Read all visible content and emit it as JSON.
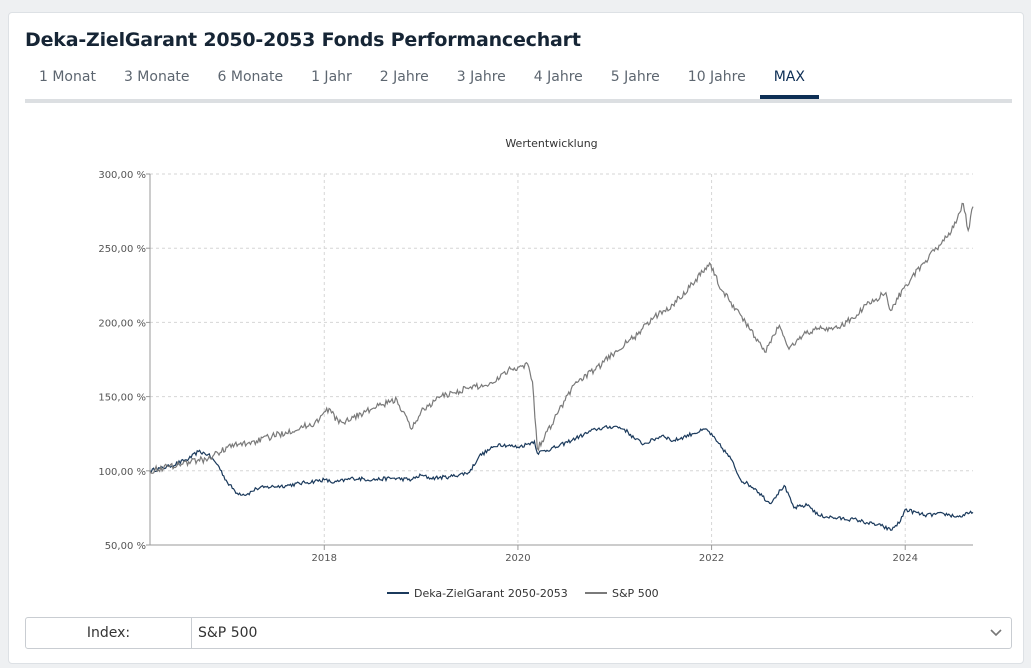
{
  "page": {
    "title": "Deka-ZielGarant 2050-2053 Fonds Performancechart"
  },
  "tabs": [
    {
      "label": "1 Monat"
    },
    {
      "label": "3 Monate"
    },
    {
      "label": "6 Monate"
    },
    {
      "label": "1 Jahr"
    },
    {
      "label": "2 Jahre"
    },
    {
      "label": "3 Jahre"
    },
    {
      "label": "4 Jahre"
    },
    {
      "label": "5 Jahre"
    },
    {
      "label": "10 Jahre"
    },
    {
      "label": "MAX",
      "active": true
    }
  ],
  "index_select": {
    "label": "Index:",
    "value": "S&P 500",
    "icon": "chevron-down-icon"
  },
  "colors": {
    "fund": "#1b3a5c",
    "index": "#7a7a7a",
    "active_tab": "#0e2f55"
  },
  "chart_data": {
    "type": "line",
    "title": "Wertentwicklung",
    "y_tick_labels": [
      "50,00 %",
      "100,00 %",
      "150,00 %",
      "200,00 %",
      "250,00 %",
      "300,00 %"
    ],
    "y_ticks": [
      50,
      100,
      150,
      200,
      250,
      300
    ],
    "ylim": [
      50,
      300
    ],
    "x_tick_labels": [
      "2018",
      "2020",
      "2022",
      "2024"
    ],
    "x_ticks": [
      2018,
      2020,
      2022,
      2024
    ],
    "xlim": [
      2016.2,
      2024.7
    ],
    "grid": true,
    "legend_position": "bottom-center",
    "series": [
      {
        "name": "Deka-ZielGarant 2050-2053",
        "x": [
          2016.2,
          2016.4,
          2016.6,
          2016.7,
          2016.8,
          2016.9,
          2017.0,
          2017.1,
          2017.2,
          2017.3,
          2017.4,
          2017.6,
          2017.8,
          2018.0,
          2018.1,
          2018.3,
          2018.5,
          2018.7,
          2018.9,
          2019.0,
          2019.1,
          2019.3,
          2019.5,
          2019.6,
          2019.8,
          2020.0,
          2020.1,
          2020.17,
          2020.2,
          2020.4,
          2020.6,
          2020.8,
          2021.0,
          2021.1,
          2021.2,
          2021.3,
          2021.5,
          2021.6,
          2021.8,
          2021.95,
          2022.05,
          2022.2,
          2022.3,
          2022.45,
          2022.6,
          2022.75,
          2022.85,
          2023.0,
          2023.1,
          2023.3,
          2023.5,
          2023.6,
          2023.75,
          2023.85,
          2023.95,
          2024.0,
          2024.2,
          2024.4,
          2024.55,
          2024.7
        ],
        "values": [
          100,
          103,
          108,
          113,
          111,
          104,
          92,
          85,
          84,
          88,
          89,
          90,
          92,
          94,
          92,
          95,
          94,
          95,
          94,
          97,
          95,
          96,
          99,
          110,
          118,
          116,
          118,
          120,
          112,
          116,
          122,
          128,
          130,
          128,
          122,
          118,
          124,
          120,
          125,
          128,
          120,
          108,
          94,
          88,
          78,
          90,
          75,
          77,
          70,
          68,
          67,
          65,
          63,
          60,
          66,
          74,
          70,
          71,
          69,
          72
        ]
      },
      {
        "name": "S&P 500",
        "x": [
          2016.2,
          2016.4,
          2016.6,
          2016.8,
          2016.9,
          2017.0,
          2017.3,
          2017.6,
          2017.9,
          2018.05,
          2018.15,
          2018.3,
          2018.5,
          2018.75,
          2018.9,
          2019.0,
          2019.2,
          2019.5,
          2019.7,
          2019.9,
          2020.1,
          2020.15,
          2020.2,
          2020.25,
          2020.4,
          2020.6,
          2020.8,
          2021.0,
          2021.2,
          2021.4,
          2021.6,
          2021.8,
          2021.98,
          2022.1,
          2022.3,
          2022.45,
          2022.55,
          2022.7,
          2022.8,
          2022.95,
          2023.1,
          2023.3,
          2023.5,
          2023.6,
          2023.8,
          2023.85,
          2024.0,
          2024.2,
          2024.35,
          2024.5,
          2024.6,
          2024.65,
          2024.7
        ],
        "values": [
          100,
          103,
          106,
          108,
          112,
          116,
          120,
          126,
          132,
          142,
          132,
          136,
          142,
          148,
          128,
          140,
          150,
          156,
          158,
          168,
          172,
          160,
          115,
          120,
          138,
          160,
          168,
          180,
          190,
          203,
          212,
          226,
          240,
          222,
          205,
          190,
          180,
          198,
          182,
          192,
          196,
          196,
          205,
          212,
          220,
          208,
          225,
          240,
          252,
          264,
          280,
          262,
          278
        ]
      }
    ]
  }
}
